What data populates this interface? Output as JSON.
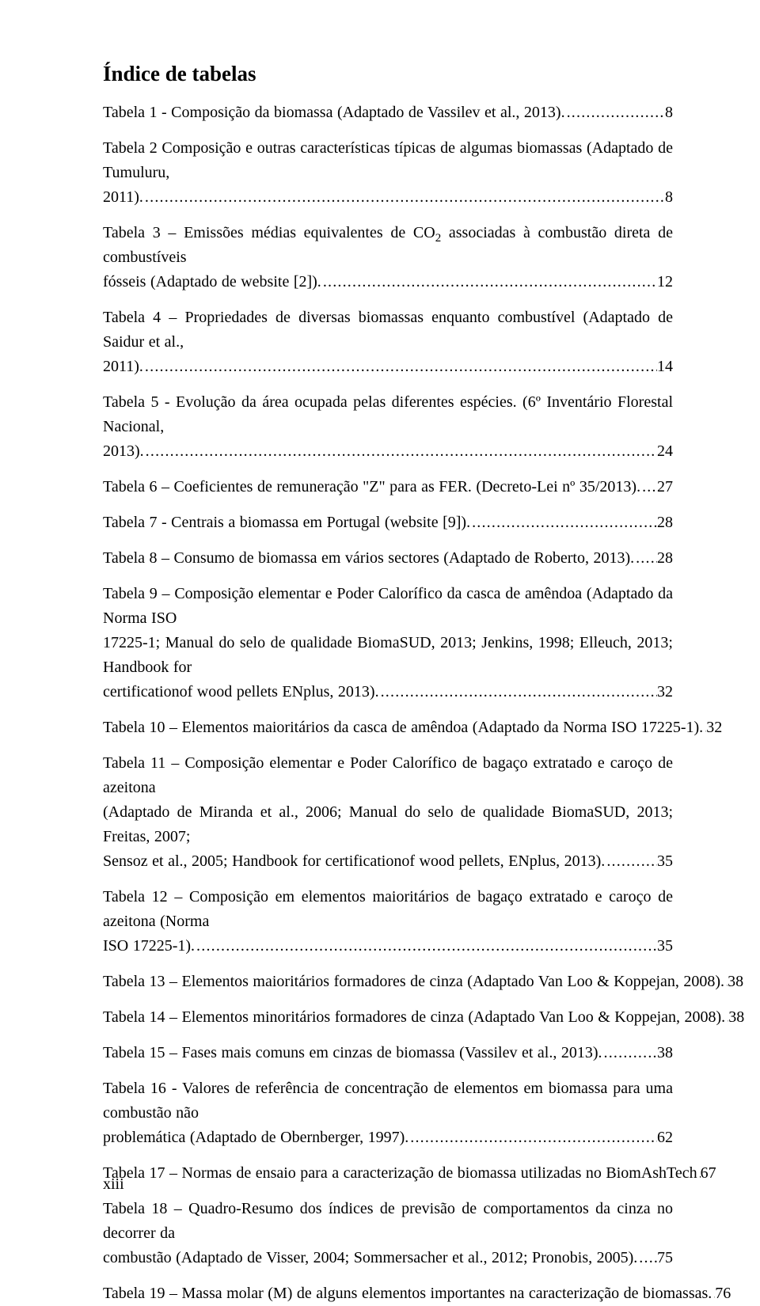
{
  "title": "Índice de tabelas",
  "footer": "xiii",
  "leader_dots": "..........................................................................................................................................................................................................",
  "entries": [
    {
      "lines": [],
      "last_prefix": "Tabela 1 - Composição da biomassa (Adaptado de Vassilev et al., 2013).",
      "page": "8"
    },
    {
      "lines": [
        "Tabela 2 Composição e outras características típicas de algumas biomassas (Adaptado de Tumuluru,"
      ],
      "last_prefix": "2011).",
      "page": "8"
    },
    {
      "lines": [
        "Tabela 3 – Emissões médias equivalentes de CO<span class=\"sub\">2</span> associadas à combustão direta de combustíveis"
      ],
      "last_prefix": "fósseis (Adaptado de website [2]).",
      "page": "12"
    },
    {
      "lines": [
        "Tabela 4 – Propriedades de diversas biomassas enquanto combustível (Adaptado de Saidur et al.,"
      ],
      "last_prefix": "2011).",
      "page": "14"
    },
    {
      "lines": [
        "Tabela 5 - Evolução da área ocupada pelas diferentes espécies. (6º Inventário Florestal Nacional,"
      ],
      "last_prefix": "2013).",
      "page": "24"
    },
    {
      "lines": [],
      "last_prefix": "Tabela 6 – Coeficientes de remuneração \"Z\" para as FER. (Decreto-Lei nº 35/2013).",
      "page": "27"
    },
    {
      "lines": [],
      "last_prefix": "Tabela 7 - Centrais a biomassa em Portugal (website [9]).",
      "page": "28"
    },
    {
      "lines": [],
      "last_prefix": "Tabela 8 – Consumo de biomassa em vários sectores (Adaptado de Roberto, 2013).",
      "page": "28"
    },
    {
      "lines": [
        "Tabela 9 – Composição elementar e Poder Calorífico da casca de amêndoa (Adaptado da Norma ISO",
        "17225-1; Manual do selo de qualidade BiomaSUD, 2013; Jenkins, 1998; Elleuch, 2013; Handbook for"
      ],
      "last_prefix": "certificationof wood pellets ENplus, 2013).",
      "page": "32"
    },
    {
      "lines": [],
      "last_prefix": "Tabela 10 – Elementos maioritários da casca de amêndoa (Adaptado da Norma ISO 17225-1).",
      "page": "32"
    },
    {
      "lines": [
        "Tabela 11 – Composição elementar e Poder Calorífico de bagaço extratado e caroço de azeitona",
        "(Adaptado de Miranda et al., 2006; Manual do selo de qualidade BiomaSUD, 2013; Freitas, 2007;"
      ],
      "last_prefix": "Sensoz et al., 2005; Handbook for certificationof wood pellets, ENplus, 2013).",
      "page": "35"
    },
    {
      "lines": [
        "Tabela 12 – Composição em elementos maioritários de bagaço extratado e caroço de azeitona (Norma"
      ],
      "last_prefix": "ISO 17225-1).",
      "page": "35"
    },
    {
      "lines": [],
      "last_prefix": "Tabela 13 – Elementos maioritários formadores de cinza (Adaptado Van Loo & Koppejan, 2008).",
      "page": "38"
    },
    {
      "lines": [],
      "last_prefix": "Tabela 14 – Elementos minoritários formadores de cinza (Adaptado Van Loo & Koppejan, 2008).",
      "page": "38"
    },
    {
      "lines": [],
      "last_prefix": "Tabela 15 – Fases mais comuns em cinzas de biomassa (Vassilev et al., 2013).",
      "page": "38"
    },
    {
      "lines": [
        "Tabela 16 - Valores de referência de concentração de elementos em biomassa para uma combustão não"
      ],
      "last_prefix": "problemática (Adaptado de Obernberger, 1997).",
      "page": "62"
    },
    {
      "lines": [],
      "last_prefix": "Tabela 17 – Normas de ensaio para a caracterização de biomassa utilizadas no BiomAshTech",
      "page": "67"
    },
    {
      "lines": [
        "Tabela 18 – Quadro-Resumo dos índices de previsão de comportamentos da cinza no decorrer da"
      ],
      "last_prefix": "combustão (Adaptado de Visser, 2004; Sommersacher et al., 2012; Pronobis, 2005).",
      "page": "75"
    },
    {
      "lines": [],
      "last_prefix": "Tabela 19 – Massa molar (M) de alguns elementos importantes na caracterização de biomassas.",
      "page": "76"
    }
  ]
}
